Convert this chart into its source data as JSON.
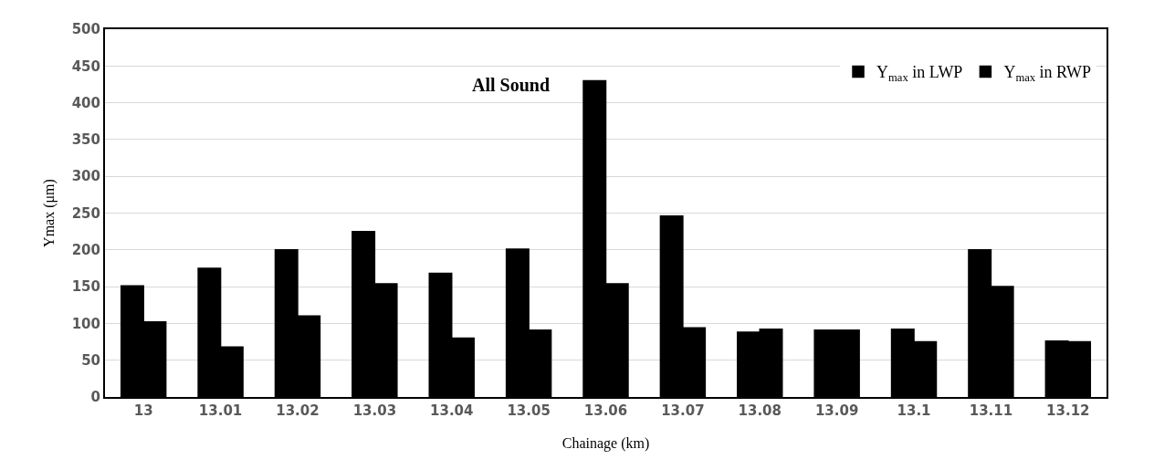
{
  "chart_data": {
    "type": "bar",
    "xlabel": "Chainage (km)",
    "ylabel": "Ymax (μm)",
    "categories": [
      "13",
      "13.01",
      "13.02",
      "13.03",
      "13.04",
      "13.05",
      "13.06",
      "13.07",
      "13.08",
      "13.09",
      "13.1",
      "13.11",
      "13.12"
    ],
    "series": [
      {
        "name": "Y$_{max}$ in LWP",
        "color": "#000000",
        "values": [
          151,
          175,
          200,
          225,
          168,
          201,
          430,
          246,
          88,
          91,
          92,
          200,
          76
        ]
      },
      {
        "name": "Y$_{max}$ in RWP",
        "color": "#000000",
        "values": [
          102,
          68,
          110,
          154,
          80,
          91,
          154,
          94,
          92,
          91,
          75,
          150,
          75
        ]
      }
    ],
    "annotations": [
      "All Sound"
    ],
    "ylim": [
      0,
      500
    ],
    "yticks": [
      0,
      50,
      100,
      150,
      200,
      250,
      300,
      350,
      400,
      450,
      500
    ],
    "grid": "y",
    "legend": "top right"
  }
}
